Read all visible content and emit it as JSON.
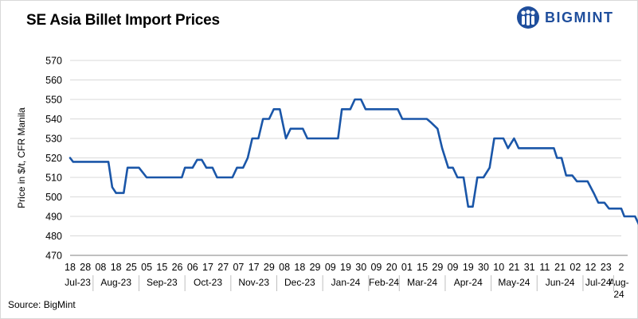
{
  "title": "SE Asia Billet Import Prices",
  "brand": {
    "name": "BIGMINT",
    "color": "#1f4e9c",
    "logo_icon": "bigmint-logo-icon"
  },
  "source": "Source: BigMint",
  "colors": {
    "line": "#1a56a8",
    "grid": "#d9d9d9",
    "axis": "#7f7f7f"
  },
  "chart_data": {
    "type": "line",
    "title": "SE Asia Billet Import Prices",
    "xlabel": "",
    "ylabel": "Price in $/t, CFR Manila",
    "ylim": [
      470,
      570
    ],
    "yticks": [
      470,
      480,
      490,
      500,
      510,
      520,
      530,
      540,
      550,
      560,
      570
    ],
    "grid": {
      "horizontal": true,
      "vertical": false
    },
    "day_ticks": [
      "18",
      "28",
      "08",
      "18",
      "25",
      "05",
      "15",
      "26",
      "06",
      "17",
      "27",
      "07",
      "17",
      "29",
      "08",
      "18",
      "29",
      "09",
      "19",
      "30",
      "09",
      "20",
      "01",
      "15",
      "29",
      "09",
      "19",
      "30",
      "10",
      "21",
      "31",
      "11",
      "21",
      "02",
      "12",
      "23",
      "2"
    ],
    "months": [
      {
        "label": "Jul-23",
        "span": [
          0,
          1
        ]
      },
      {
        "label": "Aug-23",
        "span": [
          2,
          4
        ]
      },
      {
        "label": "Sep-23",
        "span": [
          5,
          7
        ]
      },
      {
        "label": "Oct-23",
        "span": [
          8,
          10
        ]
      },
      {
        "label": "Nov-23",
        "span": [
          11,
          13
        ]
      },
      {
        "label": "Dec-23",
        "span": [
          14,
          16
        ]
      },
      {
        "label": "Jan-24",
        "span": [
          17,
          19
        ]
      },
      {
        "label": "Feb-24",
        "span": [
          20,
          21
        ]
      },
      {
        "label": "Mar-24",
        "span": [
          22,
          24
        ]
      },
      {
        "label": "Apr-24",
        "span": [
          25,
          27
        ]
      },
      {
        "label": "May-24",
        "span": [
          28,
          30
        ]
      },
      {
        "label": "Jun-24",
        "span": [
          31,
          33
        ]
      },
      {
        "label": "Jul-24",
        "span": [
          34,
          35
        ]
      },
      {
        "label": "Aug-24",
        "span": [
          36,
          36
        ]
      }
    ],
    "series": [
      {
        "values": [
          [
            0,
            520
          ],
          [
            0.2,
            518
          ],
          [
            2,
            518
          ],
          [
            2.5,
            518
          ],
          [
            2.75,
            505
          ],
          [
            3,
            502
          ],
          [
            3.5,
            502
          ],
          [
            3.75,
            515
          ],
          [
            4.5,
            515
          ],
          [
            5,
            510
          ],
          [
            6,
            510
          ],
          [
            7,
            510
          ],
          [
            7.3,
            510
          ],
          [
            7.5,
            515
          ],
          [
            8,
            515
          ],
          [
            8.3,
            519
          ],
          [
            8.6,
            519
          ],
          [
            8.9,
            515
          ],
          [
            9.3,
            515
          ],
          [
            9.6,
            510
          ],
          [
            10,
            510
          ],
          [
            10.6,
            510
          ],
          [
            10.9,
            515
          ],
          [
            11.3,
            515
          ],
          [
            11.6,
            520
          ],
          [
            11.9,
            530
          ],
          [
            12.3,
            530
          ],
          [
            12.6,
            540
          ],
          [
            13,
            540
          ],
          [
            13.3,
            545
          ],
          [
            13.7,
            545
          ],
          [
            14.1,
            530
          ],
          [
            14.4,
            535
          ],
          [
            15.2,
            535
          ],
          [
            15.5,
            530
          ],
          [
            16,
            530
          ],
          [
            17,
            530
          ],
          [
            17.5,
            530
          ],
          [
            17.75,
            545
          ],
          [
            18.3,
            545
          ],
          [
            18.6,
            550
          ],
          [
            19,
            550
          ],
          [
            19.3,
            545
          ],
          [
            20,
            545
          ],
          [
            21,
            545
          ],
          [
            21.4,
            545
          ],
          [
            21.7,
            540
          ],
          [
            22,
            540
          ],
          [
            23,
            540
          ],
          [
            23.3,
            540
          ],
          [
            23.6,
            538
          ],
          [
            24,
            535
          ],
          [
            24.3,
            525
          ],
          [
            24.7,
            515
          ],
          [
            25,
            515
          ],
          [
            25.3,
            510
          ],
          [
            25.7,
            510
          ],
          [
            26,
            495
          ],
          [
            26.3,
            495
          ],
          [
            26.6,
            510
          ],
          [
            27,
            510
          ],
          [
            27.4,
            515
          ],
          [
            27.7,
            530
          ],
          [
            28.3,
            530
          ],
          [
            28.6,
            525
          ],
          [
            29,
            530
          ],
          [
            29.3,
            525
          ],
          [
            30,
            525
          ],
          [
            31,
            525
          ],
          [
            31.6,
            525
          ],
          [
            31.8,
            520
          ],
          [
            32.1,
            520
          ],
          [
            32.4,
            511
          ],
          [
            32.8,
            511
          ],
          [
            33.1,
            508
          ],
          [
            33.8,
            508
          ],
          [
            34.2,
            502
          ],
          [
            34.5,
            497
          ],
          [
            34.9,
            497
          ],
          [
            35.2,
            494
          ],
          [
            36,
            494
          ],
          [
            36.2,
            490
          ],
          [
            36.9,
            490
          ],
          [
            37.2,
            485
          ]
        ]
      }
    ]
  }
}
